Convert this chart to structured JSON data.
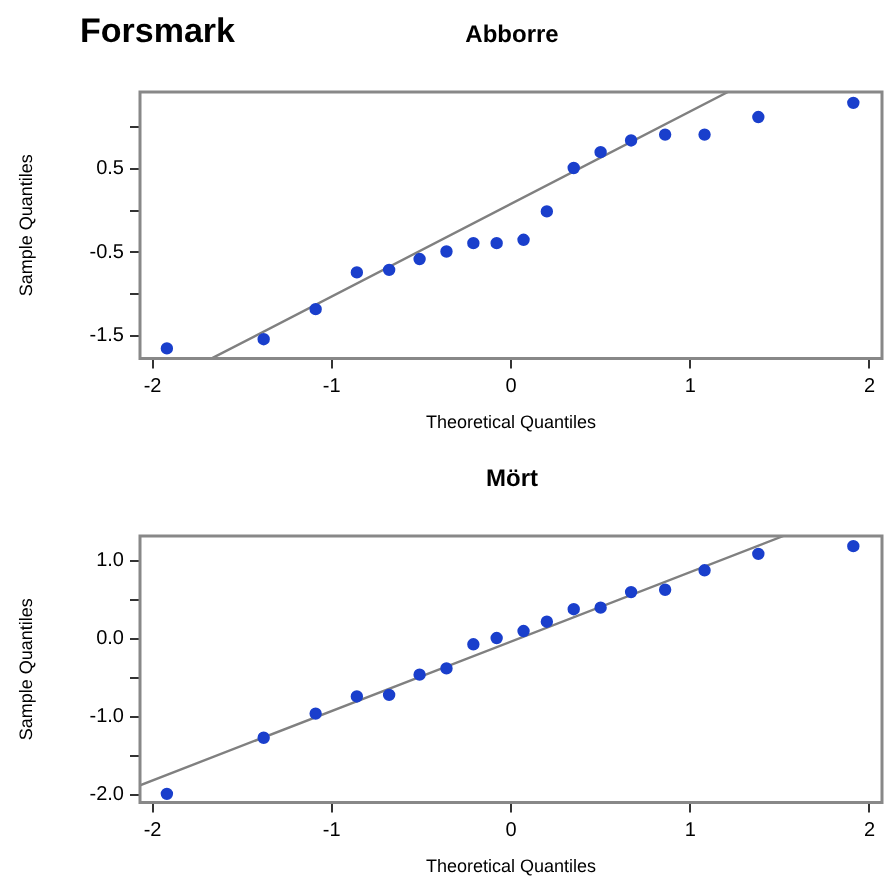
{
  "chart_data": [
    {
      "type": "scatter",
      "title": "Abborre",
      "annotations": [
        "Forsmark"
      ],
      "xlabel": "Theoretical Quantiles",
      "ylabel": "Sample Quantiles",
      "x": [
        -1.92,
        -1.38,
        -1.09,
        -0.86,
        -0.68,
        -0.51,
        -0.36,
        -0.21,
        -0.08,
        0.07,
        0.2,
        0.35,
        0.5,
        0.67,
        0.86,
        1.08,
        1.38,
        1.91
      ],
      "series": [
        {
          "color": "#1a3fcc",
          "marker": "circle",
          "values": [
            -1.65,
            -1.54,
            -1.18,
            -0.74,
            -0.71,
            -0.58,
            -0.49,
            -0.39,
            -0.39,
            -0.35,
            -0.01,
            0.51,
            0.7,
            0.84,
            0.91,
            0.91,
            1.12,
            1.29
          ]
        },
        {
          "type": "line",
          "color": "#808080",
          "marker": "none",
          "x": [
            -1.67,
            1.21
          ],
          "values": [
            -1.77,
            1.42
          ]
        }
      ],
      "xlim": [
        -2.07,
        2.07
      ],
      "ylim": [
        -1.77,
        1.42
      ],
      "xticks": [
        -2,
        -1,
        0,
        1,
        2
      ],
      "yticks": [
        -1.5,
        {
          "value": -1,
          "label": null
        },
        -0.5,
        {
          "value": 0,
          "label": null
        },
        0.5,
        {
          "value": 1,
          "label": null
        }
      ],
      "grid": false,
      "legend": false
    },
    {
      "type": "scatter",
      "title": "Mört",
      "xlabel": "Theoretical Quantiles",
      "ylabel": "Sample Quantiles",
      "x": [
        -1.92,
        -1.38,
        -1.09,
        -0.86,
        -0.68,
        -0.51,
        -0.36,
        -0.21,
        -0.08,
        0.07,
        0.2,
        0.35,
        0.5,
        0.67,
        0.86,
        1.08,
        1.38,
        1.91
      ],
      "series": [
        {
          "color": "#1a3fcc",
          "marker": "circle",
          "values": [
            -1.99,
            -1.27,
            -0.96,
            -0.74,
            -0.72,
            -0.46,
            -0.38,
            -0.07,
            0.01,
            0.1,
            0.22,
            0.38,
            0.4,
            0.6,
            0.63,
            0.88,
            1.09,
            1.19
          ]
        },
        {
          "type": "line",
          "color": "#808080",
          "marker": "none",
          "x": [
            -2.07,
            1.52
          ],
          "values": [
            -1.88,
            1.32
          ]
        }
      ],
      "xlim": [
        -2.07,
        2.07
      ],
      "ylim": [
        -2.1,
        1.32
      ],
      "xticks": [
        -2,
        -1,
        0,
        1,
        2
      ],
      "yticks": [
        {
          "value": -2,
          "label": "-2.0"
        },
        {
          "value": -1.5,
          "label": null
        },
        {
          "value": -1,
          "label": "-1.0"
        },
        {
          "value": -0.5,
          "label": null
        },
        {
          "value": 0,
          "label": "0.0"
        },
        {
          "value": 0.5,
          "label": null
        },
        {
          "value": 1,
          "label": "1.0"
        }
      ],
      "grid": false,
      "legend": false
    }
  ]
}
